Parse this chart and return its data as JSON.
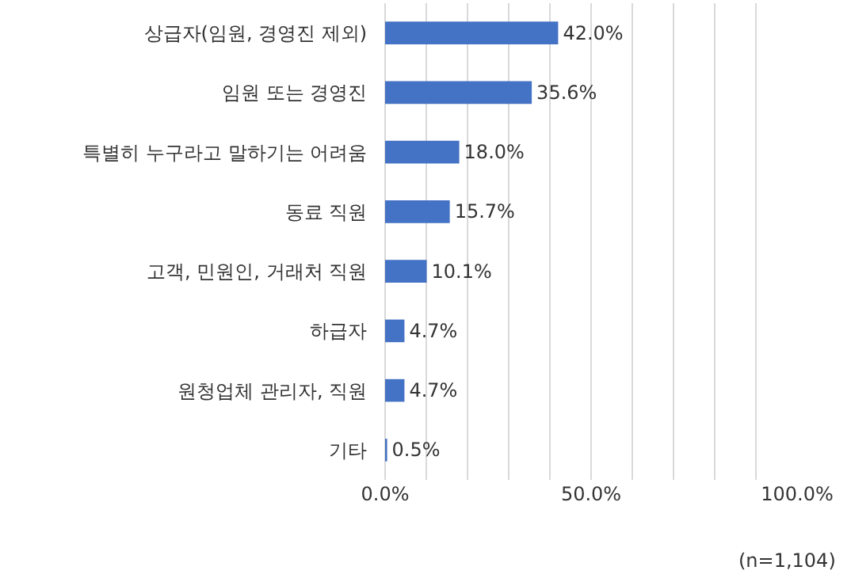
{
  "chart_data": {
    "type": "bar",
    "orientation": "horizontal",
    "categories": [
      "상급자(임원, 경영진 제외)",
      "임원 또는 경영진",
      "특별히 누구라고 말하기는 어려움",
      "동료 직원",
      "고객, 민원인, 거래처 직원",
      "하급자",
      "원청업체 관리자, 직원",
      "기타"
    ],
    "values": [
      42.0,
      35.6,
      18.0,
      15.7,
      10.1,
      4.7,
      4.7,
      0.5
    ],
    "value_labels": [
      "42.0%",
      "35.6%",
      "18.0%",
      "15.7%",
      "10.1%",
      "4.7%",
      "4.7%",
      "0.5%"
    ],
    "color": "#4472c4",
    "xlim": [
      0,
      100
    ],
    "xticks": [
      {
        "value": 0,
        "label": "0.0%"
      },
      {
        "value": 10,
        "label": null
      },
      {
        "value": 20,
        "label": null
      },
      {
        "value": 30,
        "label": null
      },
      {
        "value": 40,
        "label": null
      },
      {
        "value": 50,
        "label": "50.0%"
      },
      {
        "value": 60,
        "label": null
      },
      {
        "value": 70,
        "label": null
      },
      {
        "value": 80,
        "label": null
      },
      {
        "value": 90,
        "label": null
      },
      {
        "value": 100,
        "label": "100.0%"
      }
    ],
    "grid": "x",
    "legend": false,
    "annotations": [
      "(n=1,104)"
    ]
  }
}
